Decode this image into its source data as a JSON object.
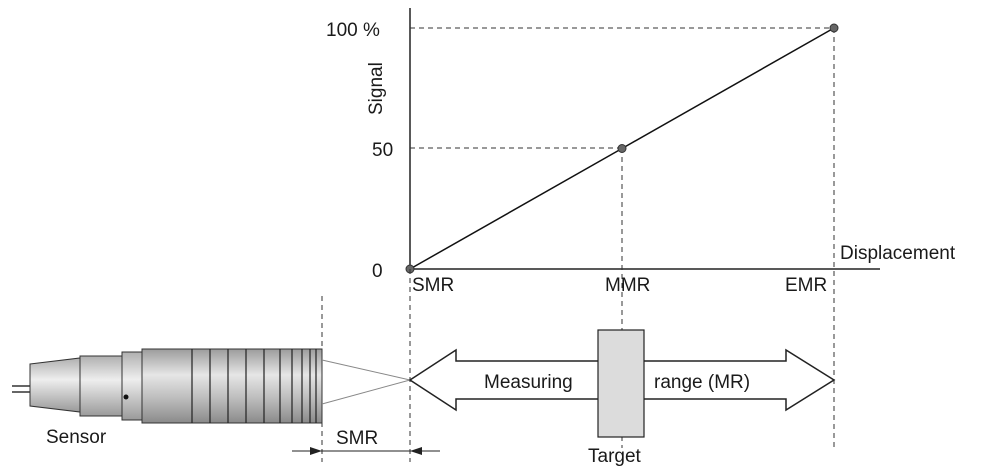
{
  "chart": {
    "y_ticks": [
      "100 %",
      "50",
      "0"
    ],
    "y_label": "Signal",
    "x_label": "Displacement",
    "x_ticks": [
      "SMR",
      "MMR",
      "EMR"
    ]
  },
  "diagram": {
    "arrow_label_left": "Measuring",
    "arrow_label_right": "range (MR)",
    "sensor_label": "Sensor",
    "target_label": "Target",
    "smr_dimension_label": "SMR"
  },
  "chart_data": {
    "type": "line",
    "x": [
      "SMR",
      "MMR",
      "EMR"
    ],
    "series": [
      {
        "values": [
          0,
          50,
          100
        ]
      }
    ],
    "xlabel": "Displacement",
    "ylabel": "Signal",
    "ylim": [
      0,
      100
    ]
  },
  "colors": {
    "target_fill": "#dcdcdc",
    "sensor_body": "#cfcfcf",
    "point_fill": "#666666"
  }
}
